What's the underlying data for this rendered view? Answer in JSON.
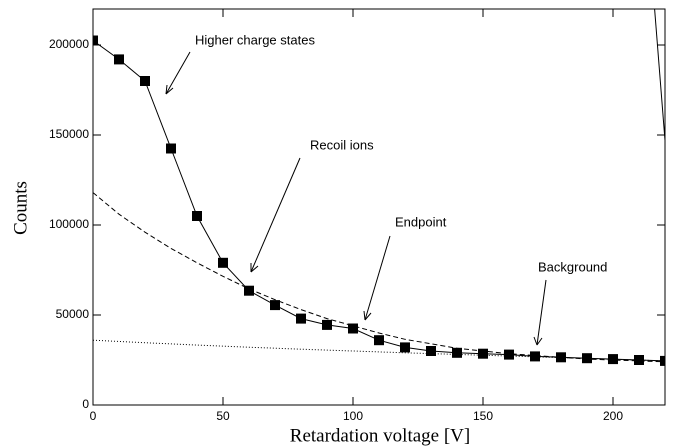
{
  "chart_data": {
    "type": "line",
    "x_label": "Retardation voltage [V]",
    "y_label": "Counts",
    "xlim": [
      0,
      220
    ],
    "ylim": [
      0,
      220000
    ],
    "xticks": [
      0,
      50,
      100,
      150,
      200
    ],
    "yticks": [
      0,
      50000,
      100000,
      150000,
      200000
    ],
    "annotations": [
      "Higher charge states",
      "Recoil ions",
      "Endpoint",
      "Background"
    ],
    "series": [
      {
        "style": "solid-markers",
        "color": "#000000",
        "x": [
          0,
          10,
          20,
          30,
          40,
          50,
          60,
          70,
          80,
          90,
          100,
          110,
          120,
          130,
          140,
          150,
          160,
          170,
          180,
          190,
          200,
          210,
          220
        ],
        "values": [
          202500,
          192000,
          180000,
          142500,
          105000,
          79000,
          63500,
          55500,
          48000,
          44500,
          42500,
          36000,
          32000,
          30000,
          29000,
          28500,
          28000,
          27000,
          26500,
          26000,
          25500,
          25000,
          24500
        ]
      },
      {
        "style": "dashed",
        "color": "#000000",
        "x": [
          0,
          10,
          20,
          30,
          40,
          50,
          60,
          70,
          80,
          90,
          100,
          110,
          120,
          130,
          140,
          150,
          160,
          170,
          180,
          190,
          200,
          210,
          220
        ],
        "values": [
          118000,
          106000,
          96000,
          87000,
          79000,
          71500,
          64500,
          58500,
          53000,
          48000,
          44000,
          40000,
          36500,
          34000,
          31500,
          30000,
          28500,
          27500,
          26500,
          25500,
          25000,
          24500,
          24000
        ]
      },
      {
        "style": "dotted",
        "color": "#000000",
        "x": [
          0,
          20,
          40,
          60,
          80,
          100,
          120,
          140,
          160,
          180,
          200,
          220
        ],
        "values": [
          36000,
          34600,
          33300,
          32100,
          31000,
          30000,
          29000,
          28100,
          27200,
          26300,
          25400,
          24500
        ]
      },
      {
        "style": "solid",
        "color": "#000000",
        "x": [
          216,
          220
        ],
        "values": [
          220000,
          147000
        ]
      }
    ]
  }
}
